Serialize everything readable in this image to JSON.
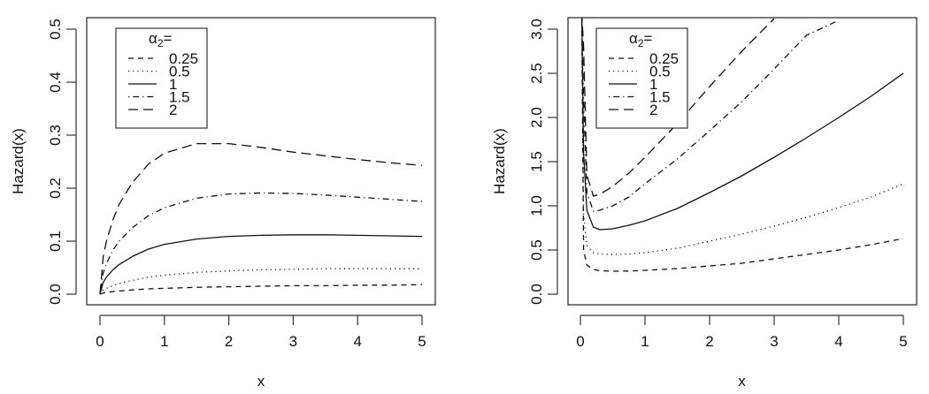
{
  "chart_data": [
    {
      "type": "line",
      "title": "",
      "xlabel": "x",
      "ylabel": "Hazard(x)",
      "xlim": [
        0,
        5
      ],
      "ylim": [
        0,
        0.5
      ],
      "x_ticks": [
        "0",
        "1",
        "2",
        "3",
        "4",
        "5"
      ],
      "y_ticks": [
        "0.0",
        "0.1",
        "0.2",
        "0.3",
        "0.4",
        "0.5"
      ],
      "grid": false,
      "legend": {
        "title": "α2=",
        "position": "top-left",
        "entries": [
          "0.25",
          "0.5",
          "1",
          "1.5",
          "2"
        ]
      },
      "x": [
        0,
        0.05,
        0.1,
        0.2,
        0.3,
        0.5,
        0.75,
        1,
        1.5,
        2,
        2.5,
        3,
        3.5,
        4,
        4.5,
        5
      ],
      "series": [
        {
          "name": "0.25",
          "style": "dashed",
          "values": [
            0,
            0.002,
            0.003,
            0.005,
            0.006,
            0.008,
            0.01,
            0.011,
            0.013,
            0.014,
            0.015,
            0.016,
            0.016,
            0.017,
            0.017,
            0.018
          ]
        },
        {
          "name": "0.5",
          "style": "dotted",
          "values": [
            0,
            0.008,
            0.011,
            0.016,
            0.02,
            0.026,
            0.032,
            0.036,
            0.041,
            0.044,
            0.046,
            0.047,
            0.048,
            0.048,
            0.048,
            0.048
          ]
        },
        {
          "name": "1",
          "style": "solid",
          "values": [
            0,
            0.022,
            0.032,
            0.046,
            0.056,
            0.071,
            0.085,
            0.094,
            0.104,
            0.109,
            0.111,
            0.112,
            0.112,
            0.111,
            0.11,
            0.109
          ]
        },
        {
          "name": "1.5",
          "style": "dotdash",
          "values": [
            0,
            0.04,
            0.058,
            0.083,
            0.1,
            0.125,
            0.148,
            0.163,
            0.181,
            0.189,
            0.191,
            0.19,
            0.187,
            0.183,
            0.179,
            0.175
          ]
        },
        {
          "name": "2",
          "style": "longdash",
          "values": [
            0,
            0.07,
            0.1,
            0.14,
            0.17,
            0.21,
            0.245,
            0.266,
            0.284,
            0.284,
            0.277,
            0.268,
            0.261,
            0.254,
            0.248,
            0.243
          ]
        }
      ]
    },
    {
      "type": "line",
      "title": "",
      "xlabel": "x",
      "ylabel": "Hazard(x)",
      "xlim": [
        0,
        5
      ],
      "ylim": [
        0,
        3.0
      ],
      "x_ticks": [
        "0",
        "1",
        "2",
        "3",
        "4",
        "5"
      ],
      "y_ticks": [
        "0.0",
        "0.5",
        "1.0",
        "1.5",
        "2.0",
        "2.5",
        "3.0"
      ],
      "grid": false,
      "legend": {
        "title": "α2=",
        "position": "top-left",
        "entries": [
          "0.25",
          "0.5",
          "1",
          "1.5",
          "2"
        ]
      },
      "x": [
        0.02,
        0.05,
        0.1,
        0.2,
        0.3,
        0.5,
        0.75,
        1,
        1.5,
        2,
        2.5,
        3,
        3.5,
        4,
        4.5,
        5
      ],
      "series": [
        {
          "name": "0.25",
          "style": "dashed",
          "values": [
            3.2,
            0.5,
            0.33,
            0.28,
            0.265,
            0.26,
            0.262,
            0.27,
            0.29,
            0.32,
            0.35,
            0.4,
            0.45,
            0.5,
            0.56,
            0.63
          ]
        },
        {
          "name": "0.5",
          "style": "dotted",
          "values": [
            3.2,
            0.9,
            0.55,
            0.47,
            0.455,
            0.45,
            0.455,
            0.47,
            0.52,
            0.6,
            0.68,
            0.77,
            0.87,
            0.98,
            1.1,
            1.25
          ]
        },
        {
          "name": "1",
          "style": "solid",
          "values": [
            3.2,
            1.6,
            0.95,
            0.76,
            0.73,
            0.74,
            0.78,
            0.83,
            0.97,
            1.15,
            1.34,
            1.55,
            1.77,
            2.0,
            2.24,
            2.5
          ]
        },
        {
          "name": "1.5",
          "style": "dotdash",
          "values": [
            3.2,
            2.2,
            1.15,
            0.94,
            0.95,
            1.0,
            1.1,
            1.25,
            1.53,
            1.85,
            2.18,
            2.55,
            2.93,
            3.1,
            null,
            null
          ]
        },
        {
          "name": "2",
          "style": "longdash",
          "values": [
            3.2,
            2.8,
            1.35,
            1.11,
            1.13,
            1.22,
            1.37,
            1.55,
            1.93,
            2.35,
            2.75,
            3.12,
            null,
            null,
            null,
            null
          ]
        }
      ]
    }
  ]
}
